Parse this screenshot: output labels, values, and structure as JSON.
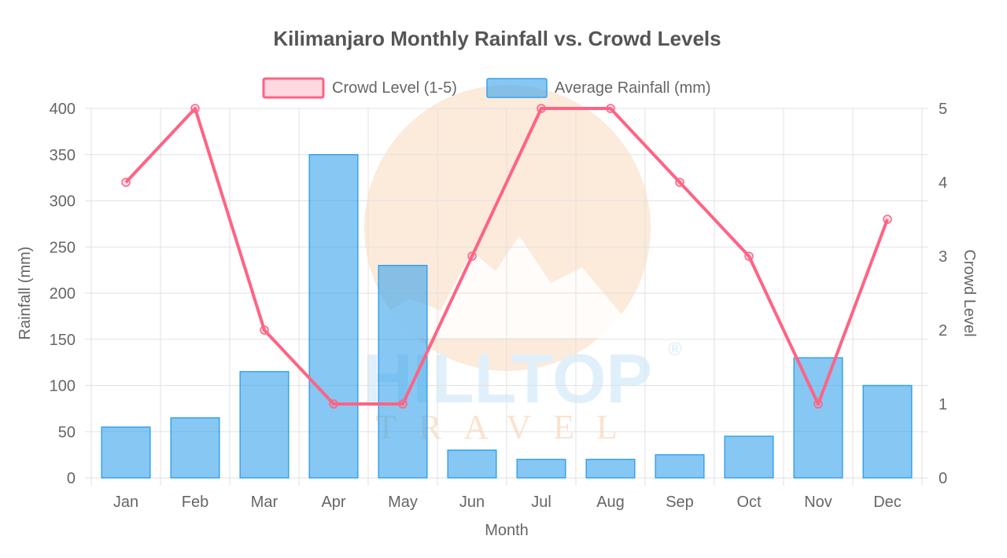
{
  "chart_data": {
    "type": "bar",
    "title": "Kilimanjaro Monthly Rainfall vs. Crowd Levels",
    "xlabel": "Month",
    "ylabel": "Rainfall (mm)",
    "y2label": "Crowd Level",
    "categories": [
      "Jan",
      "Feb",
      "Mar",
      "Apr",
      "May",
      "Jun",
      "Jul",
      "Aug",
      "Sep",
      "Oct",
      "Nov",
      "Dec"
    ],
    "ylim": [
      0,
      400
    ],
    "yticks": [
      0,
      50,
      100,
      150,
      200,
      250,
      300,
      350,
      400
    ],
    "y2lim": [
      0,
      5
    ],
    "y2ticks": [
      0,
      1,
      2,
      3,
      4,
      5
    ],
    "grid": true,
    "legend_position": "top",
    "series": [
      {
        "name": "Crowd Level (1-5)",
        "type": "line",
        "axis": "right",
        "color": "#ff6384",
        "values": [
          4,
          5,
          2,
          1,
          1,
          3,
          5,
          5,
          4,
          3,
          1,
          3.5
        ]
      },
      {
        "name": "Average Rainfall (mm)",
        "type": "bar",
        "axis": "left",
        "color": "#36a2eb",
        "values": [
          55,
          65,
          115,
          350,
          230,
          30,
          20,
          20,
          25,
          45,
          130,
          100
        ]
      }
    ]
  },
  "watermark": {
    "brand": "HILLTOP",
    "sub": "TRAVEL",
    "mark": "®",
    "sun_color": "#fbe3cf",
    "text_color": "#dff0fb"
  }
}
